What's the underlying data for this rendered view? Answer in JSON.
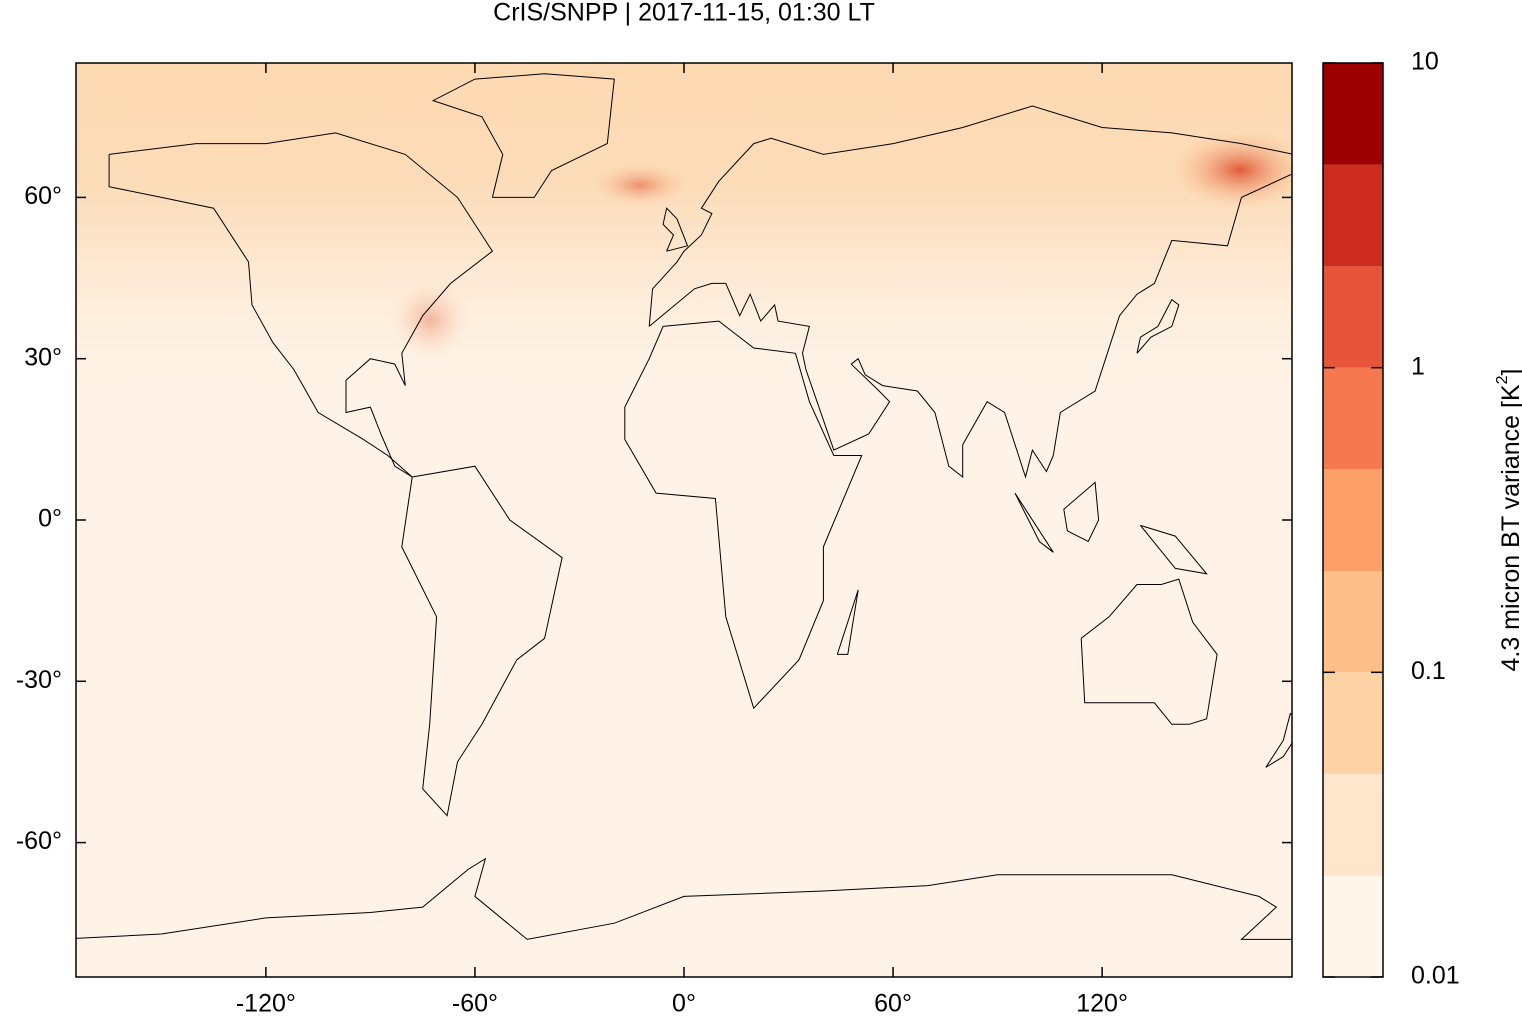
{
  "chart_data": {
    "type": "map",
    "title": "CrIS/SNPP | 2017-11-15, 01:30 LT",
    "xlim": [
      -174.5,
      174.5
    ],
    "ylim": [
      -85,
      85
    ],
    "xticks": [
      {
        "value": -120,
        "label": "-120°"
      },
      {
        "value": -60,
        "label": "-60°"
      },
      {
        "value": 0,
        "label": "0°"
      },
      {
        "value": 60,
        "label": "60°"
      },
      {
        "value": 120,
        "label": "120°"
      }
    ],
    "yticks": [
      {
        "value": 60,
        "label": "60°"
      },
      {
        "value": 30,
        "label": "30°"
      },
      {
        "value": 0,
        "label": "0°"
      },
      {
        "value": -30,
        "label": "-30°"
      },
      {
        "value": -60,
        "label": "-60°"
      }
    ],
    "colorbar": {
      "label": "4.3 micron BT variance [K",
      "label_sup": "2",
      "label_end": "]",
      "log": true,
      "lim": [
        0.01,
        10
      ],
      "ticks": [
        0.01,
        0.1,
        1,
        10
      ],
      "levels": [
        0.01,
        0.0215,
        0.0464,
        0.1,
        0.215,
        0.464,
        1,
        2.15,
        4.64,
        10
      ],
      "colors": [
        "#fef5e9",
        "#fde6cc",
        "#fdd3a6",
        "#fdbe87",
        "#fc9e67",
        "#f6784f",
        "#e65539",
        "#cc2d1f",
        "#9c0000"
      ]
    }
  }
}
